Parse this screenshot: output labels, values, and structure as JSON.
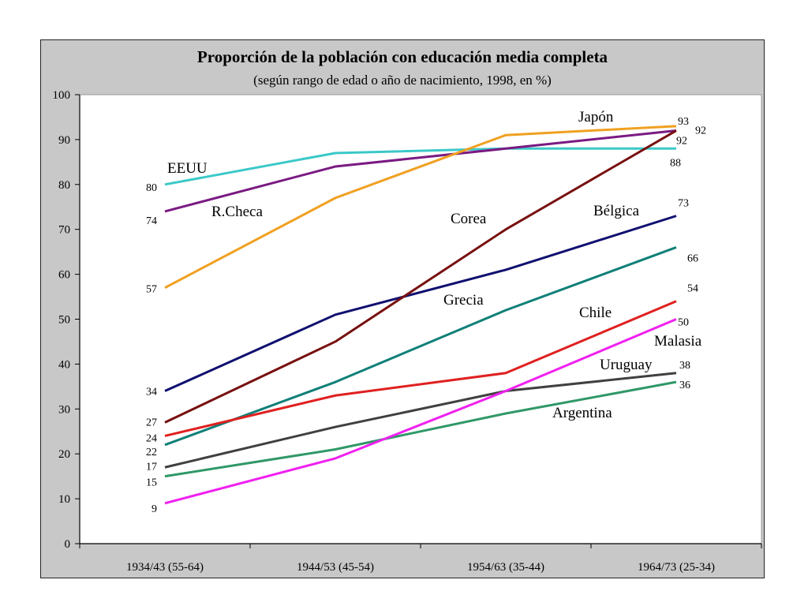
{
  "chart_data": {
    "type": "line",
    "title": "Proporción de la población con educación media completa",
    "subtitle": "(según rango de edad o año de nacimiento, 1998, en %)",
    "categories": [
      "1934/43 (55-64)",
      "1944/53 (45-54)",
      "1954/63 (35-44)",
      "1964/73 (25-34)"
    ],
    "ylim": [
      0,
      100
    ],
    "yticks": [
      0,
      10,
      20,
      30,
      40,
      50,
      60,
      70,
      80,
      90,
      100
    ],
    "grid": false,
    "series": [
      {
        "name": "EEUU",
        "color": "#3cc8c8",
        "values": [
          80,
          87,
          88,
          88
        ],
        "first_label": "80",
        "last_label": "88"
      },
      {
        "name": "R.Checa",
        "color": "#7a1a82",
        "values": [
          74,
          84,
          88,
          92
        ],
        "first_label": "74",
        "last_label": "92"
      },
      {
        "name": "Japón",
        "color": "#f0a020",
        "values": [
          57,
          77,
          91,
          93
        ],
        "first_label": "57",
        "last_label": "93"
      },
      {
        "name": "Bélgica",
        "color": "#101070",
        "values": [
          34,
          51,
          61,
          73
        ],
        "first_label": "34",
        "last_label": "73"
      },
      {
        "name": "Corea",
        "color": "#781010",
        "values": [
          27,
          45,
          70,
          92
        ],
        "first_label": "27",
        "last_label": "92"
      },
      {
        "name": "Grecia",
        "color": "#108078",
        "values": [
          22,
          36,
          52,
          66
        ],
        "first_label": "22",
        "last_label": "66"
      },
      {
        "name": "Chile",
        "color": "#e02020",
        "values": [
          24,
          33,
          38,
          54
        ],
        "first_label": "24",
        "last_label": "54"
      },
      {
        "name": "Uruguay",
        "color": "#404040",
        "values": [
          17,
          26,
          34,
          38
        ],
        "first_label": "17",
        "last_label": "38"
      },
      {
        "name": "Argentina",
        "color": "#309868",
        "values": [
          15,
          21,
          29,
          36
        ],
        "first_label": "15",
        "last_label": "36"
      },
      {
        "name": "Malasia",
        "color": "#f020f0",
        "values": [
          9,
          19,
          34,
          50
        ],
        "first_label": "9",
        "last_label": "50"
      }
    ]
  }
}
